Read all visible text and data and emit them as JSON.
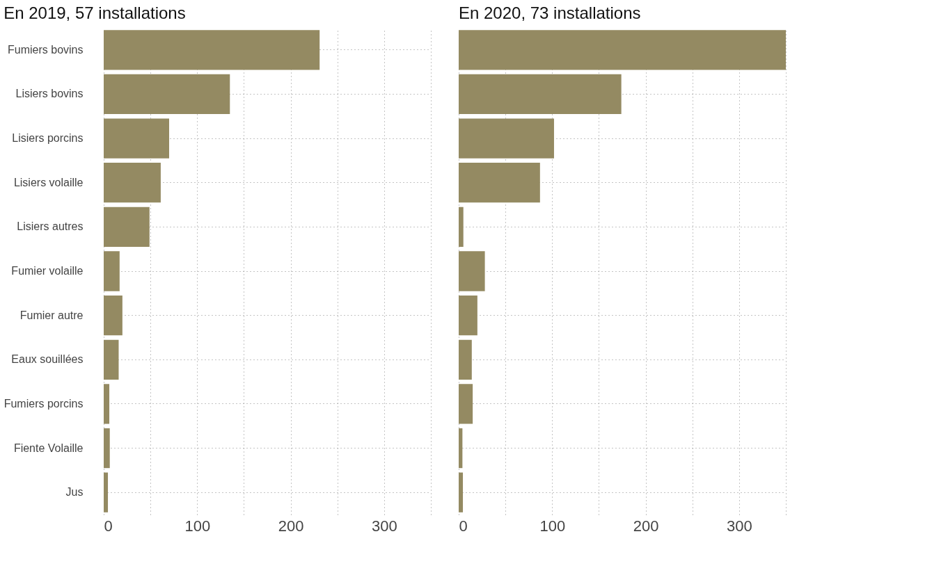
{
  "chart_data": [
    {
      "type": "bar",
      "orientation": "horizontal",
      "title": "En 2019, 57 installations",
      "categories": [
        "Fumiers bovins",
        "Lisiers bovins",
        "Lisiers porcins",
        "Lisiers volaille",
        "Lisiers autres",
        "Fumier volaille",
        "Fumier autre",
        "Eaux souillées",
        "Fumiers porcins",
        "Fiente Volaille",
        "Jus"
      ],
      "values": [
        231,
        135,
        70,
        61,
        49,
        17,
        20,
        16,
        6,
        6.5,
        4.5
      ],
      "color": "#948a62",
      "xlim": [
        0,
        350
      ],
      "xticks": [
        0,
        {
          "value": 50,
          "label": null
        },
        100,
        {
          "value": 150,
          "label": null
        },
        200,
        {
          "value": 250,
          "label": null
        },
        300,
        {
          "value": 350,
          "label": null
        }
      ],
      "grid": true
    },
    {
      "type": "bar",
      "orientation": "horizontal",
      "title": "En 2020, 73 installations",
      "categories": [
        null,
        null,
        null,
        null,
        null,
        null,
        null,
        null,
        null,
        null,
        null
      ],
      "values": [
        350,
        174,
        102,
        87,
        5,
        28,
        20,
        14,
        15,
        4,
        4.5
      ],
      "color": "#948a62",
      "xlim": [
        0,
        350
      ],
      "xticks": [
        0,
        {
          "value": 50,
          "label": null
        },
        100,
        {
          "value": 150,
          "label": null
        },
        200,
        {
          "value": 250,
          "label": null
        },
        300,
        {
          "value": 350,
          "label": null
        }
      ],
      "grid": true,
      "tick_labels": "x"
    }
  ]
}
